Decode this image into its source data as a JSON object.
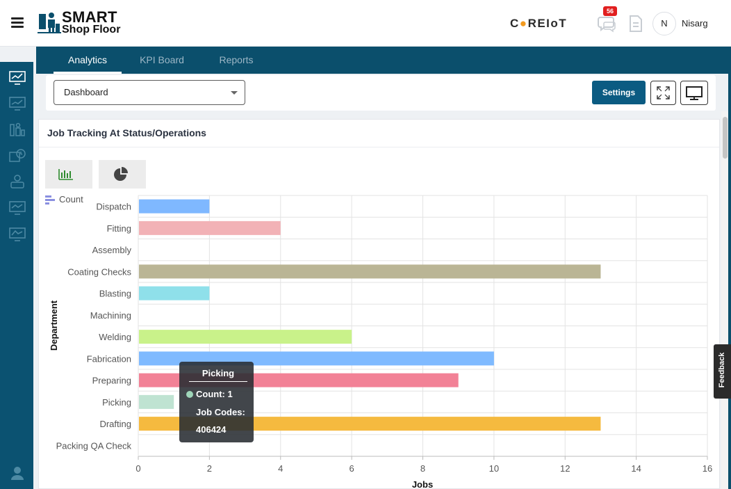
{
  "app": {
    "logo_line1": "SMART",
    "logo_line2": "Shop Floor",
    "brand_pre": "C",
    "brand_o": "●",
    "brand_post": "REIoT",
    "notification_count": "56",
    "user_initial": "N",
    "user_name": "Nisarg"
  },
  "tabs": [
    {
      "label": "Analytics",
      "active": true
    },
    {
      "label": "KPI Board",
      "active": false
    },
    {
      "label": "Reports",
      "active": false
    }
  ],
  "controls": {
    "dashboard_select": "Dashboard",
    "settings_label": "Settings"
  },
  "card": {
    "title": "Job Tracking At Status/Operations"
  },
  "feedback_label": "Feedback",
  "colors": {
    "header_teal": "#0b4f6c",
    "settings_blue": "#0b5b82",
    "badge_red": "#e11f1f"
  },
  "chart_data": {
    "type": "bar",
    "orientation": "horizontal",
    "legend": "Count",
    "xlabel": "Jobs",
    "ylabel": "Department",
    "xlim": [
      0,
      16
    ],
    "xticks": [
      0,
      2,
      4,
      6,
      8,
      10,
      12,
      14,
      16
    ],
    "categories": [
      "Dispatch",
      "Fitting",
      "Assembly",
      "Coating Checks",
      "Blasting",
      "Machining",
      "Welding",
      "Fabrication",
      "Preparing",
      "Picking",
      "Drafting",
      "Packing QA Check"
    ],
    "values": [
      2,
      4,
      0,
      13,
      2,
      0,
      6,
      10,
      9,
      1,
      13,
      0
    ],
    "bar_colors": [
      "#7fb8ff",
      "#f2b2b6",
      "#cccccc",
      "#bab595",
      "#8fe0ea",
      "#cccccc",
      "#c9f28a",
      "#7fbaff",
      "#f28196",
      "#bfe3d2",
      "#f5ba3f",
      "#cccccc"
    ],
    "grid": true
  },
  "tooltip": {
    "title": "Picking",
    "count_line": "Count: 1",
    "codes_label": "Job Codes:",
    "codes_value": "406424"
  }
}
